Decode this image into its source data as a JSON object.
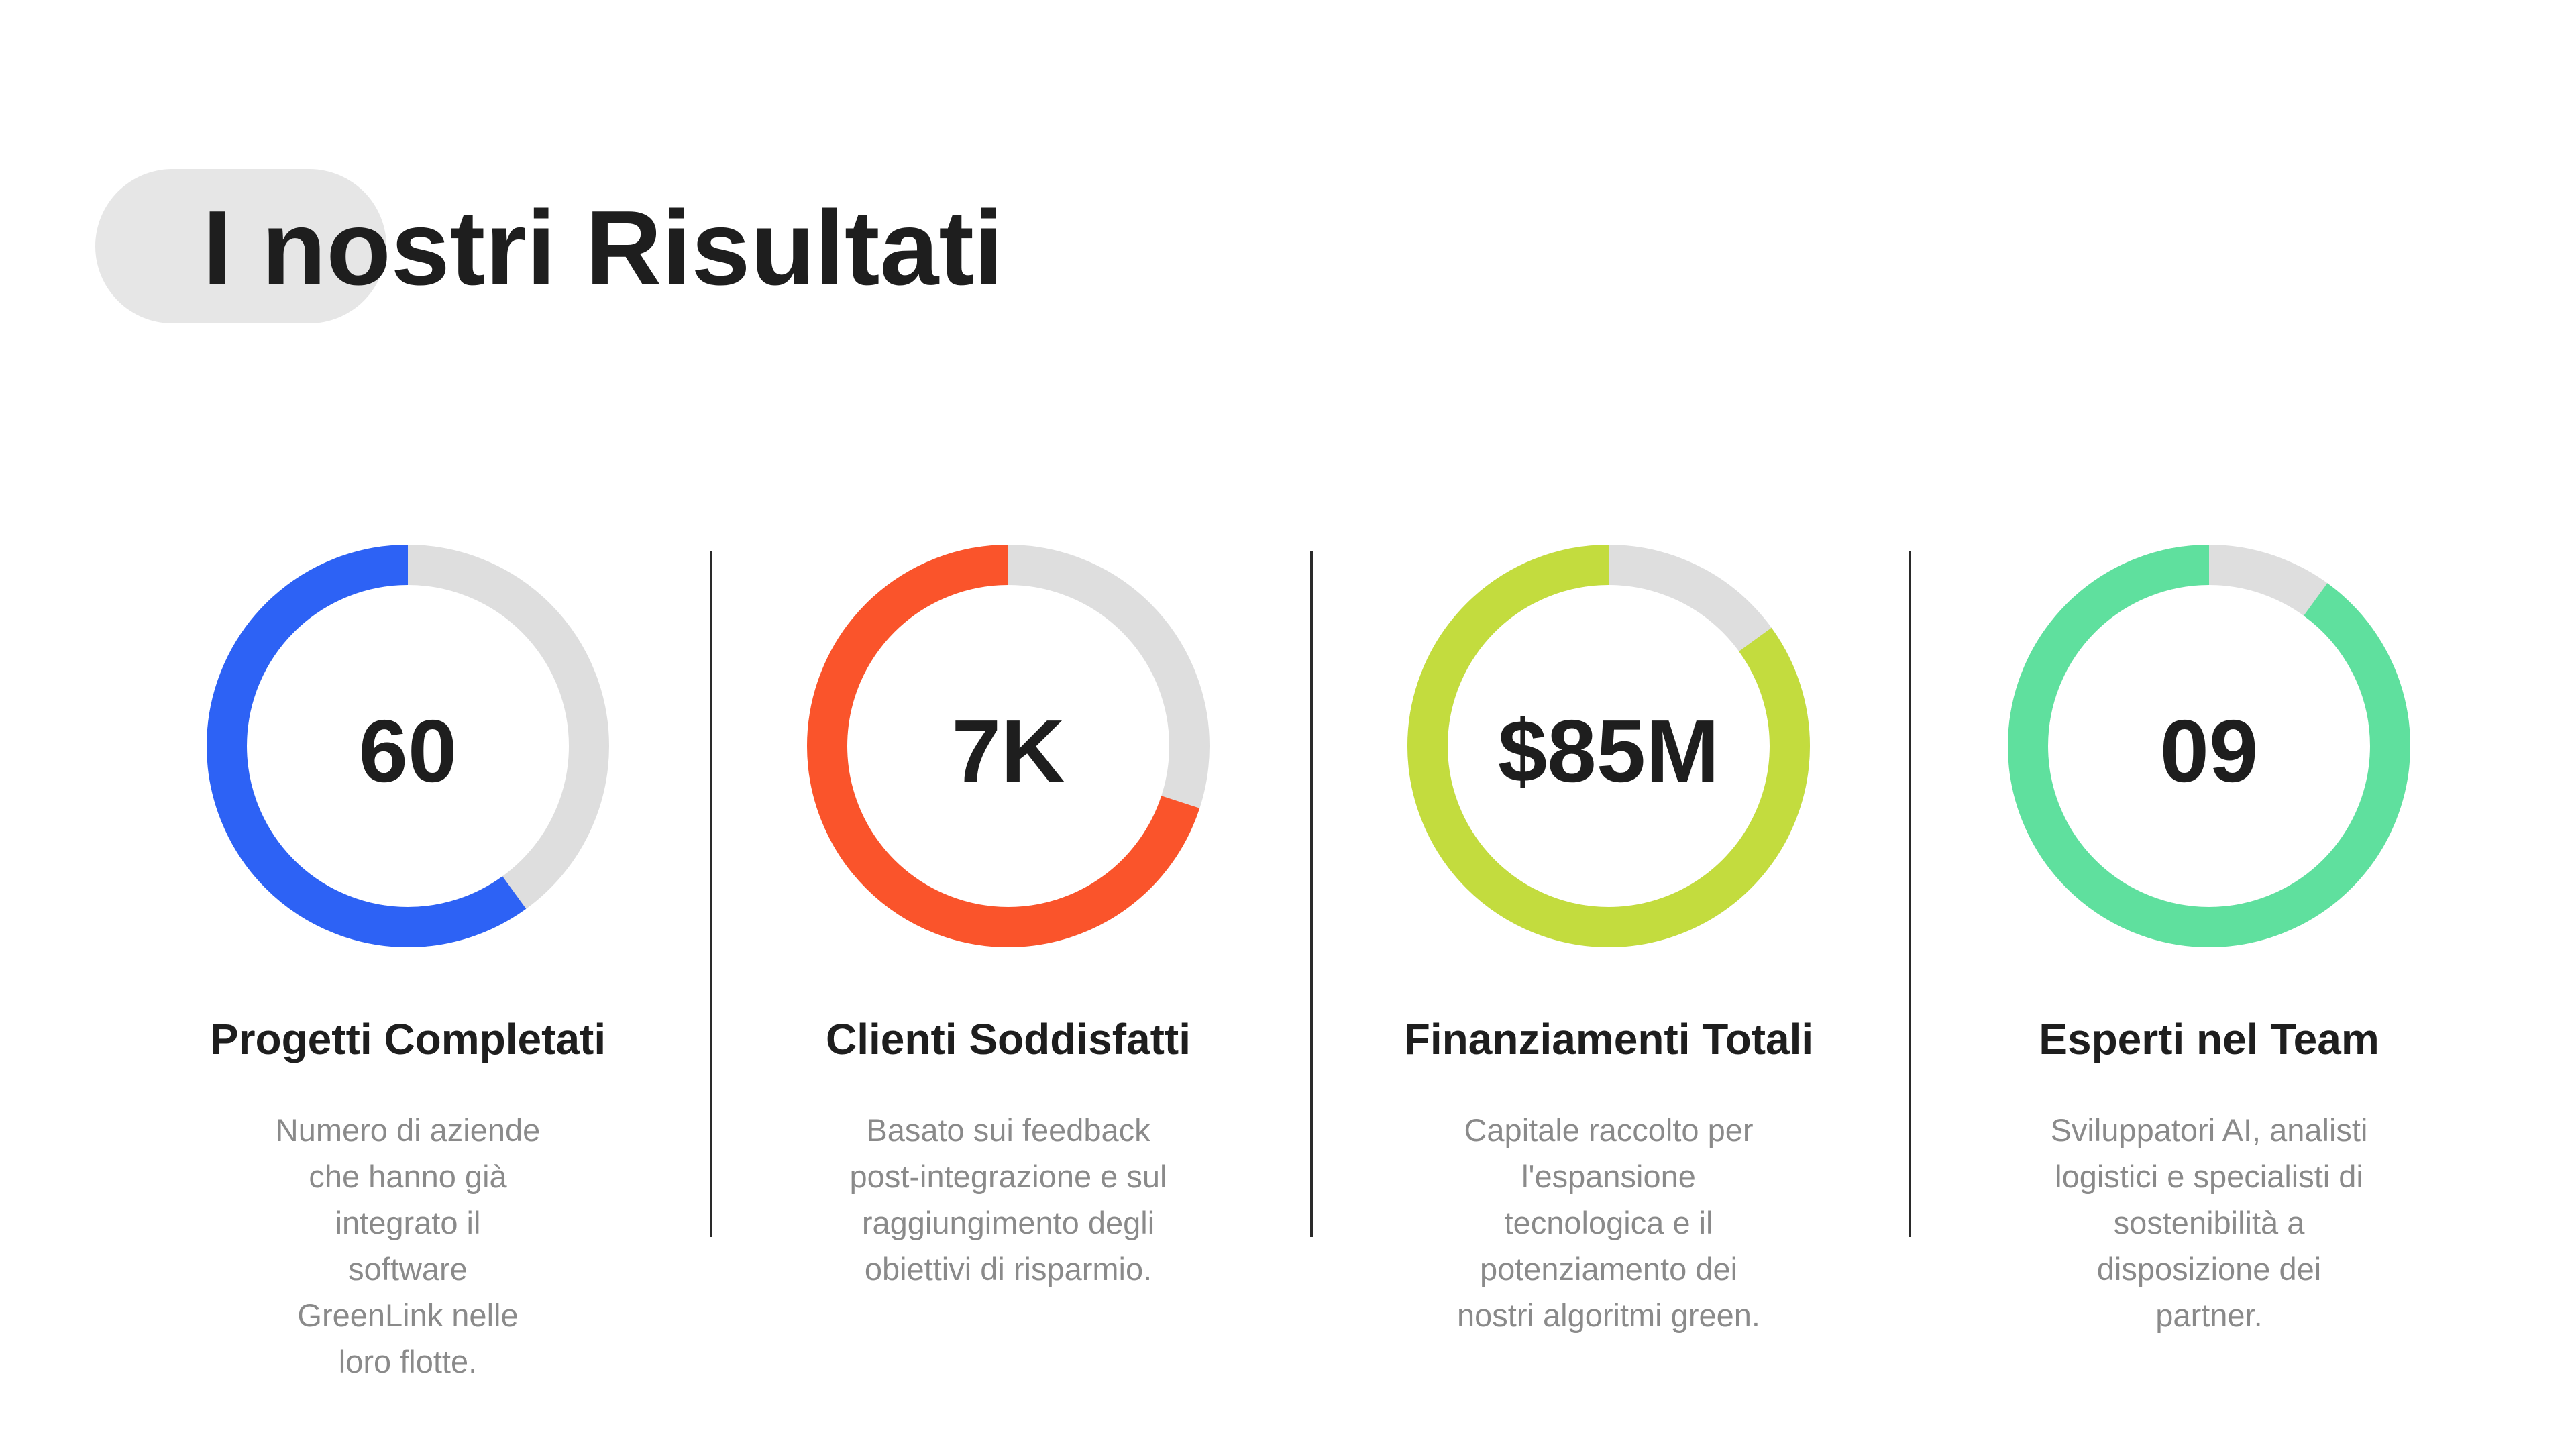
{
  "header": {
    "title": "I nostri Risultati"
  },
  "colors": {
    "track": "#dedede",
    "blue": "#2d62f5",
    "orange": "#fa542b",
    "lime": "#c3dc3e",
    "green": "#5fe09e"
  },
  "stats": [
    {
      "value": "60",
      "label": "Progetti Completati",
      "description": "Numero di aziende che hanno già integrato il software GreenLink nelle loro flotte.",
      "fraction": 0.6,
      "color": "#2d62f5"
    },
    {
      "value": "7K",
      "label": "Clienti Soddisfatti",
      "description": "Basato sui feedback post-integrazione e sul raggiungimento degli obiettivi di risparmio.",
      "fraction": 0.7,
      "color": "#fa542b"
    },
    {
      "value": "$85M",
      "label": "Finanziamenti Totali",
      "description": "Capitale raccolto per l'espansione tecnologica e il potenziamento dei nostri algoritmi green.",
      "fraction": 0.85,
      "color": "#c3dc3e"
    },
    {
      "value": "09",
      "label": "Esperti nel Team",
      "description": "Sviluppatori AI, analisti logistici e specialisti di sostenibilità a disposizione dei partner.",
      "fraction": 0.9,
      "color": "#5fe09e"
    }
  ]
}
